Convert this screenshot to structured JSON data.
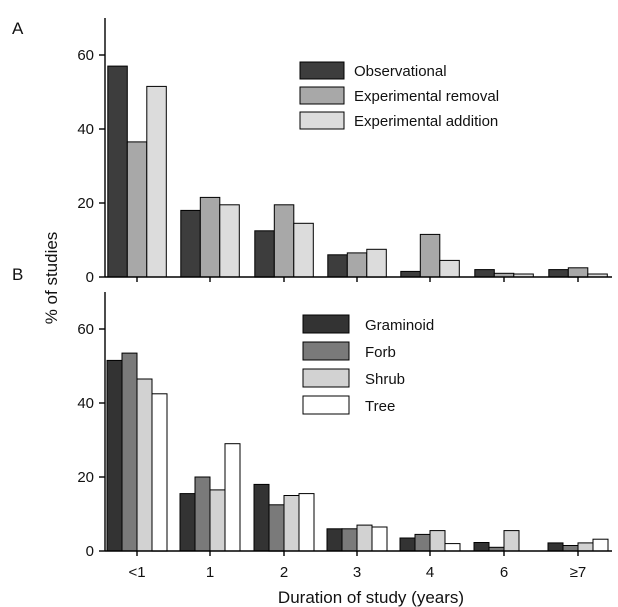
{
  "chart_data": [
    {
      "type": "bar",
      "panel_label": "A",
      "categories": [
        "<1",
        "1",
        "2",
        "3",
        "4",
        "6",
        "≥7"
      ],
      "series": [
        {
          "name": "Observational",
          "color": "#3d3d3d",
          "values": [
            57,
            18,
            12.5,
            6,
            1.5,
            2,
            2
          ]
        },
        {
          "name": "Experimental removal",
          "color": "#a8a8a8",
          "values": [
            36.5,
            21.5,
            19.5,
            6.5,
            11.5,
            1,
            2.5
          ]
        },
        {
          "name": "Experimental addition",
          "color": "#dcdcdc",
          "values": [
            51.5,
            19.5,
            14.5,
            7.5,
            4.5,
            0.8,
            0.8
          ]
        }
      ],
      "ylim": [
        0,
        70
      ],
      "yticks": [
        "0",
        "20",
        "40",
        "60"
      ],
      "legend_position": "top-right",
      "grid": false
    },
    {
      "type": "bar",
      "panel_label": "B",
      "categories": [
        "<1",
        "1",
        "2",
        "3",
        "4",
        "6",
        "≥7"
      ],
      "series": [
        {
          "name": "Graminoid",
          "color": "#333333",
          "values": [
            51.5,
            15.5,
            18,
            6,
            3.5,
            2.3,
            2.2
          ]
        },
        {
          "name": "Forb",
          "color": "#7a7a7a",
          "values": [
            53.5,
            20,
            12.5,
            6,
            4.5,
            1,
            1.5
          ]
        },
        {
          "name": "Shrub",
          "color": "#d2d2d2",
          "values": [
            46.5,
            16.5,
            15,
            7,
            5.5,
            5.5,
            2.2
          ]
        },
        {
          "name": "Tree",
          "color": "#ffffff",
          "values": [
            42.5,
            29,
            15.5,
            6.5,
            2,
            0,
            3.2
          ]
        }
      ],
      "ylim": [
        0,
        70
      ],
      "yticks": [
        "0",
        "20",
        "40",
        "60"
      ],
      "legend_position": "top-right",
      "grid": false
    }
  ],
  "ylabel": "% of studies",
  "xlabel": "Duration of study (years)"
}
